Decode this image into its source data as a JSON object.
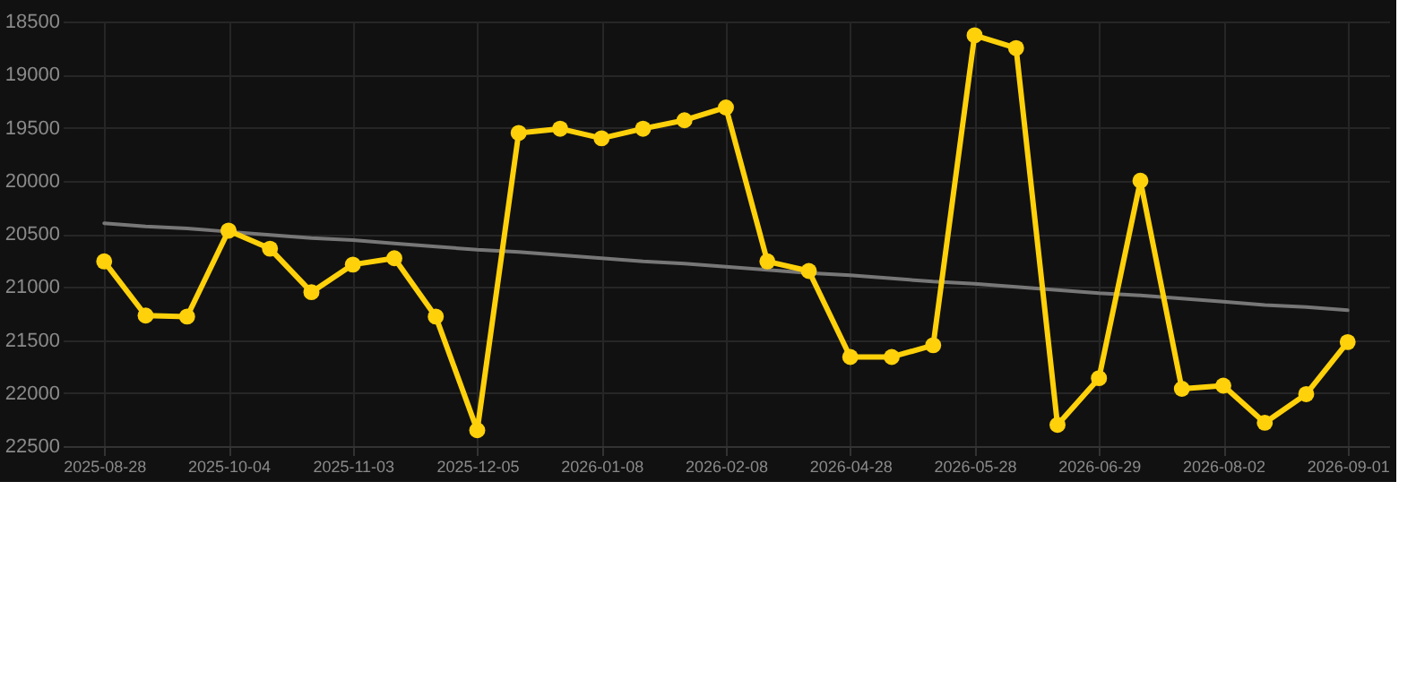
{
  "chart_data": {
    "type": "line",
    "categories": [
      "2025-08-28",
      null,
      null,
      "2025-10-04",
      null,
      null,
      "2025-11-03",
      null,
      null,
      "2025-12-05",
      null,
      null,
      "2026-01-08",
      null,
      null,
      "2026-02-08",
      null,
      null,
      "2026-04-28",
      null,
      null,
      "2026-05-28",
      null,
      null,
      "2026-06-29",
      null,
      null,
      "2026-08-02",
      null,
      null,
      "2026-09-01"
    ],
    "series": [
      {
        "color": "#ffd10a",
        "marker": "circle",
        "values": [
          20760,
          21270,
          21280,
          20470,
          20640,
          21050,
          20790,
          20730,
          21280,
          22350,
          19550,
          19510,
          19600,
          19510,
          19430,
          19310,
          20760,
          20850,
          21660,
          21660,
          21550,
          18630,
          18750,
          22300,
          21860,
          20000,
          21960,
          21930,
          22280,
          22010,
          21520
        ]
      },
      {
        "type": "line",
        "color": "#777777",
        "marker": "none",
        "values": [
          20400,
          20430,
          20450,
          20480,
          20510,
          20540,
          20560,
          20590,
          20620,
          20650,
          20670,
          20700,
          20730,
          20760,
          20780,
          20810,
          20840,
          20870,
          20890,
          20920,
          20950,
          20970,
          21000,
          21030,
          21060,
          21080,
          21110,
          21140,
          21170,
          21190,
          21220
        ]
      }
    ],
    "ylim": [
      22500,
      18500
    ],
    "yticks": [
      18500,
      19000,
      19500,
      20000,
      20500,
      21000,
      21500,
      22000,
      22500
    ],
    "grid": true
  }
}
